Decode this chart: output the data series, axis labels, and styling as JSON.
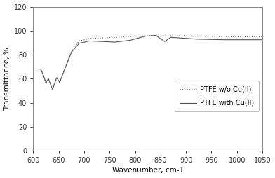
{
  "xlim": [
    600,
    1050
  ],
  "ylim": [
    0,
    120
  ],
  "xticks": [
    600,
    650,
    700,
    750,
    800,
    850,
    900,
    950,
    1000,
    1050
  ],
  "yticks": [
    0,
    20,
    40,
    60,
    80,
    100,
    120
  ],
  "xlabel": "Wavenumber, cm-1",
  "ylabel": "Transmittance, %",
  "legend_solid": "PTFE with Cu(II)",
  "legend_dotted": "PTFE w/o Cu(II)",
  "line_color": "#555555",
  "background_color": "#ffffff",
  "figsize": [
    3.92,
    2.54
  ],
  "dpi": 100
}
